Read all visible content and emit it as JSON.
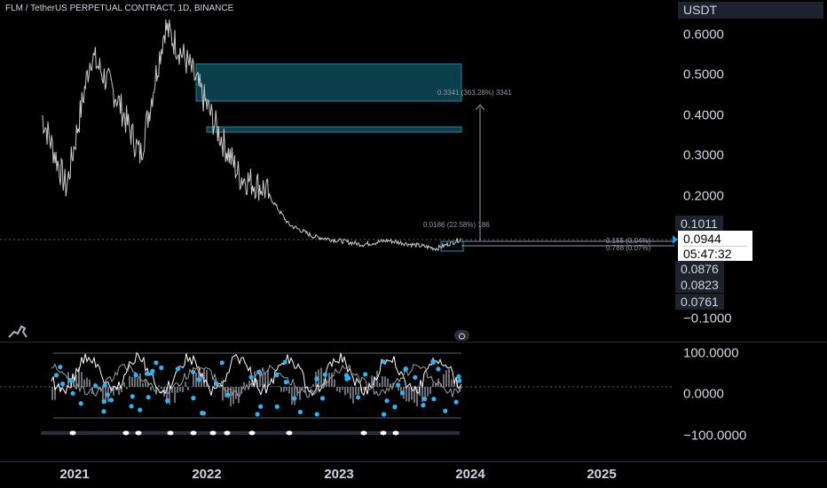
{
  "legend": {
    "title": "FLM / TetherUS PERPETUAL CONTRACT, 1D, BINANCE"
  },
  "price_axis": {
    "currency": "USDT",
    "labels": [
      "0.6000",
      "0.5000",
      "0.4000",
      "0.3000",
      "0.2000",
      "−0.1000"
    ],
    "tags": [
      "0.1011",
      "0.0876",
      "0.0823",
      "0.0761"
    ],
    "current_price": "0.0944",
    "countdown": "05:47:32"
  },
  "indicator_axis": {
    "labels": [
      "100.0000",
      "0.0000",
      "−100.0000"
    ]
  },
  "time_axis": {
    "labels": [
      "2021",
      "2022",
      "2023",
      "2024",
      "2025"
    ]
  },
  "measurements": {
    "long": "0.3341 (363.28%) 3341",
    "short": "0.0186 (22.58%) 186",
    "overlap_1": "0.155 (0.04%)",
    "overlap_2": "0.788 (0.07%)"
  },
  "icons": {
    "logo": "dinosaur-logo-icon",
    "scroll": "scroll-to-realtime-icon"
  },
  "colors": {
    "background": "#000000",
    "price_line": "#c8c8c8",
    "zone": "#0e4a5a",
    "zone_border": "#2a9bb6",
    "dots": "#29b6f6",
    "current_tag": "#ffffff",
    "crosshair": "#5d606b"
  },
  "chart_data": {
    "type": "line",
    "title": "FLM / TetherUS PERPETUAL CONTRACT, 1D, BINANCE",
    "xlabel": "",
    "ylabel": "",
    "x": [
      "2021-01",
      "2021-03",
      "2021-05",
      "2021-07",
      "2021-09",
      "2021-11",
      "2022-01",
      "2022-03",
      "2022-05",
      "2022-07",
      "2022-09",
      "2022-11",
      "2023-01",
      "2023-03",
      "2023-05",
      "2023-07",
      "2023-09",
      "2023-11"
    ],
    "series": [
      {
        "values": [
          0.4,
          0.22,
          0.55,
          0.45,
          0.3,
          0.62,
          0.52,
          0.38,
          0.25,
          0.22,
          0.13,
          0.1,
          0.09,
          0.08,
          0.09,
          0.08,
          0.07,
          0.094
        ]
      }
    ],
    "ylim": [
      -0.1,
      0.65
    ],
    "grid": false,
    "current_value": 0.0944
  }
}
